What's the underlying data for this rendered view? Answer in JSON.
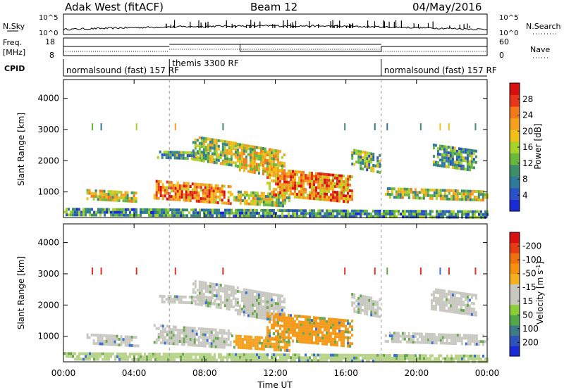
{
  "header": {
    "station": "Adak West (fitACF)",
    "beam": "Beam 12",
    "date": "04/May/2016"
  },
  "labels": {
    "nsky": "N.Sky",
    "nsearch": "N.Search",
    "freq_line1": "Freq.",
    "freq_line2": "[MHz]",
    "nave": "Nave",
    "cpid": "CPID",
    "nsky_ticks": [
      "10^5",
      "10^0"
    ],
    "freq_ticks": [
      "18",
      "8"
    ],
    "nave_ticks": [
      "60",
      "0"
    ]
  },
  "cpid_segments": [
    {
      "start_hour": 0,
      "end_hour": 6,
      "label": "normalsound (fast) 157 RF"
    },
    {
      "start_hour": 6,
      "end_hour": 18,
      "label": "themis 3300 RF"
    },
    {
      "start_hour": 18,
      "end_hour": 24,
      "label": "normalsound (fast) 157 RF"
    }
  ],
  "chart_data": [
    {
      "type": "heatmap",
      "panel": "power",
      "xlabel": "",
      "ylabel": "Slant Range [km]",
      "xlim": [
        0,
        24
      ],
      "ylim": [
        180,
        4600
      ],
      "yticks": [
        1000,
        2000,
        3000,
        4000
      ],
      "colorbar": {
        "label": "Power [dB]",
        "ticks": [
          "4",
          "8",
          "12",
          "16",
          "20",
          "24",
          "28"
        ],
        "colors": [
          "#1a2bd6",
          "#2a52c4",
          "#2f7a9a",
          "#3e8e6a",
          "#6ab83c",
          "#a8d32a",
          "#f0c018",
          "#f5a01e",
          "#f27a1a",
          "#e8361a",
          "#d81010"
        ]
      },
      "features": [
        {
          "start_hour": 1.3,
          "end_hour": 4.2,
          "range_low_km": 750,
          "range_high_km": 1050,
          "level": 0.55
        },
        {
          "start_hour": 5.1,
          "end_hour": 9.5,
          "range_low_km": 700,
          "range_high_km": 1300,
          "level": 0.75
        },
        {
          "start_hour": 5.3,
          "end_hour": 8.6,
          "range_low_km": 2100,
          "range_high_km": 2300,
          "level": 0.35
        },
        {
          "start_hour": 7.3,
          "end_hour": 9.9,
          "range_low_km": 1950,
          "range_high_km": 2700,
          "level": 0.45
        },
        {
          "start_hour": 9.7,
          "end_hour": 12.5,
          "range_low_km": 1550,
          "range_high_km": 2450,
          "level": 0.55
        },
        {
          "start_hour": 9.5,
          "end_hour": 12.8,
          "range_low_km": 620,
          "range_high_km": 1000,
          "level": 0.5
        },
        {
          "start_hour": 11.5,
          "end_hour": 16.4,
          "range_low_km": 800,
          "range_high_km": 1650,
          "level": 0.72
        },
        {
          "start_hour": 16.3,
          "end_hour": 17.9,
          "range_low_km": 1700,
          "range_high_km": 2300,
          "level": 0.4
        },
        {
          "start_hour": 18.2,
          "end_hour": 24.0,
          "range_low_km": 750,
          "range_high_km": 1100,
          "level": 0.5
        },
        {
          "start_hour": 20.8,
          "end_hour": 23.4,
          "range_low_km": 1750,
          "range_high_km": 2450,
          "level": 0.35
        },
        {
          "start_hour": 0.0,
          "end_hour": 24.0,
          "range_low_km": 180,
          "range_high_km": 450,
          "level": 0.3
        }
      ]
    },
    {
      "type": "heatmap",
      "panel": "velocity",
      "xlabel": "Time UT",
      "ylabel": "Slant Range [km]",
      "xlim": [
        0,
        24
      ],
      "ylim": [
        180,
        4600
      ],
      "xticks": [
        "00:00",
        "04:00",
        "08:00",
        "12:00",
        "16:00",
        "20:00",
        "00:00"
      ],
      "yticks": [
        1000,
        2000,
        3000,
        4000
      ],
      "colorbar": {
        "label": "Velocity [m s",
        "label_exponent": "-1",
        "label_close": "]",
        "ticks": [
          "200",
          "100",
          "50",
          "15",
          "-15",
          "-50",
          "-100",
          "-200"
        ],
        "colors": [
          "#1a2bd6",
          "#2e52b8",
          "#3f7a8a",
          "#52a846",
          "#8ccd3a",
          "#c8c8c0",
          "#c8c8c0",
          "#f5b020",
          "#f59010",
          "#f07010",
          "#e63c14",
          "#d81010"
        ]
      },
      "features": [
        {
          "start_hour": 1.3,
          "end_hour": 4.2,
          "range_low_km": 750,
          "range_high_km": 1050,
          "color": "#c8c8c0"
        },
        {
          "start_hour": 5.1,
          "end_hour": 9.5,
          "range_low_km": 700,
          "range_high_km": 1300,
          "color": "#c8c8c0"
        },
        {
          "start_hour": 5.3,
          "end_hour": 8.6,
          "range_low_km": 2100,
          "range_high_km": 2300,
          "color": "#c8c8c0"
        },
        {
          "start_hour": 7.3,
          "end_hour": 9.9,
          "range_low_km": 1950,
          "range_high_km": 2700,
          "color": "#c8c8c0"
        },
        {
          "start_hour": 9.7,
          "end_hour": 12.5,
          "range_low_km": 1550,
          "range_high_km": 2450,
          "color": "#c8c8c0"
        },
        {
          "start_hour": 9.5,
          "end_hour": 12.8,
          "range_low_km": 620,
          "range_high_km": 1000,
          "color": "#f5a01e"
        },
        {
          "start_hour": 11.5,
          "end_hour": 16.4,
          "range_low_km": 800,
          "range_high_km": 1650,
          "color": "#f59a1a"
        },
        {
          "start_hour": 16.3,
          "end_hour": 17.9,
          "range_low_km": 1700,
          "range_high_km": 2300,
          "color": "#c8c8c0"
        },
        {
          "start_hour": 18.2,
          "end_hour": 24.0,
          "range_low_km": 750,
          "range_high_km": 1100,
          "color": "#c8c8c0"
        },
        {
          "start_hour": 20.8,
          "end_hour": 23.4,
          "range_low_km": 1750,
          "range_high_km": 2450,
          "color": "#c8c8c0"
        },
        {
          "start_hour": 0.0,
          "end_hour": 24.0,
          "range_low_km": 180,
          "range_high_km": 450,
          "color": "#b8d48a"
        }
      ]
    }
  ]
}
